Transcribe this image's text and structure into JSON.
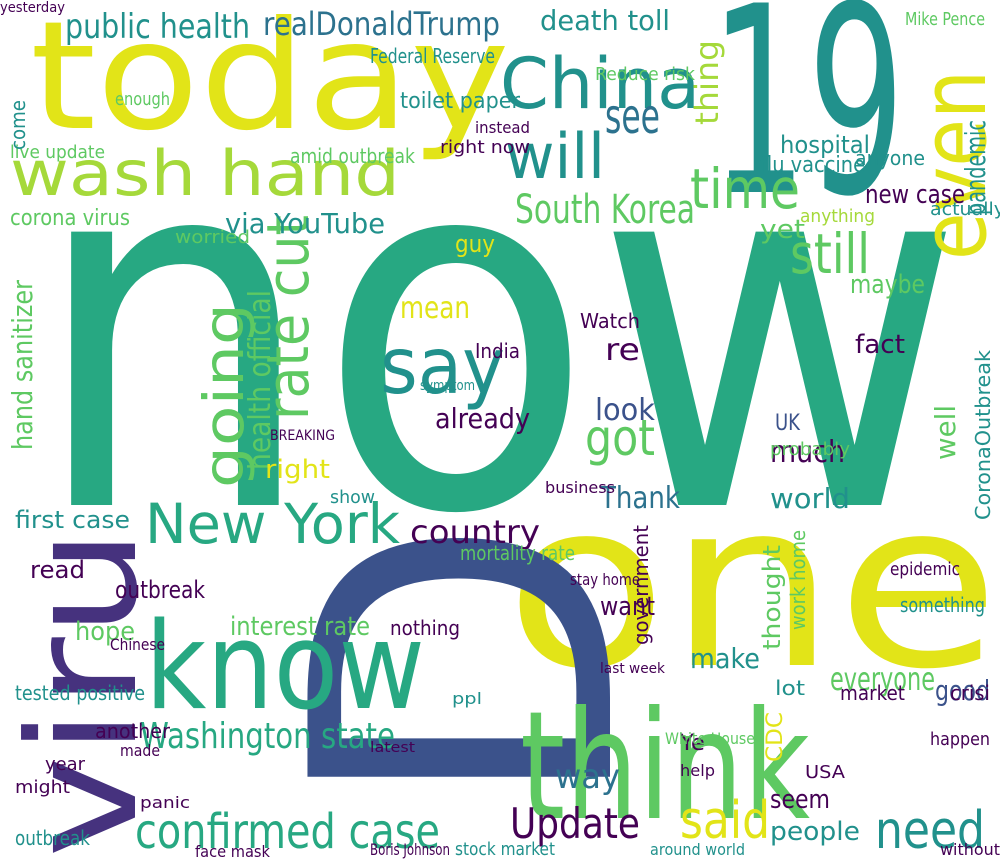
{
  "words": [
    "now",
    "one",
    "19",
    "D",
    "viru",
    "today",
    "think",
    "know",
    "wash hand",
    "say",
    "going",
    "rate cut",
    "New York",
    "confirmed case",
    "Washington state",
    "China",
    "will",
    "see",
    "time",
    "even",
    "still",
    "South Korea",
    "public health",
    "realDonaldTrump",
    "death toll",
    "Update",
    "said",
    "need",
    "got",
    "look",
    "health official",
    "hand sanitizer",
    "via YouTube",
    "toilet paper",
    "pandemic",
    "interest rate",
    "country",
    "world",
    "Thank",
    "good",
    "everyone",
    "make",
    "want",
    "right",
    "first case",
    "corona virus",
    "hospital",
    "flu vaccine",
    "new case",
    "mean",
    "already",
    "re",
    "fact",
    "maybe",
    "much",
    "seem",
    "people",
    "way",
    "Federal Reserve",
    "Reduce risk",
    "thing",
    "Mike Pence",
    "live update",
    "amid outbreak",
    "right now",
    "guy",
    "yet",
    "anyone",
    "anything",
    "actually",
    "India",
    "Watch",
    "UK",
    "probably",
    "well",
    "CoronaOutbreak",
    "show",
    "business",
    "mortality rate",
    "read",
    "hope",
    "outbreak",
    "tested positive",
    "another",
    "year",
    "might",
    "outbreak",
    "panic",
    "face mask",
    "stock market",
    "Boris Johnson",
    "around world",
    "without",
    "CDC",
    "USA",
    "epidemic",
    "something",
    "market",
    "lot",
    "happen",
    "crisi",
    "Ye",
    "help",
    "nothing",
    "stay home",
    "government",
    "thought",
    "work home",
    "White House",
    "BREAKING",
    "symptom",
    "yesterday",
    "Chinese",
    "made",
    "latest",
    "last week",
    "ppl",
    "worried",
    "come",
    "enough",
    "instead"
  ]
}
